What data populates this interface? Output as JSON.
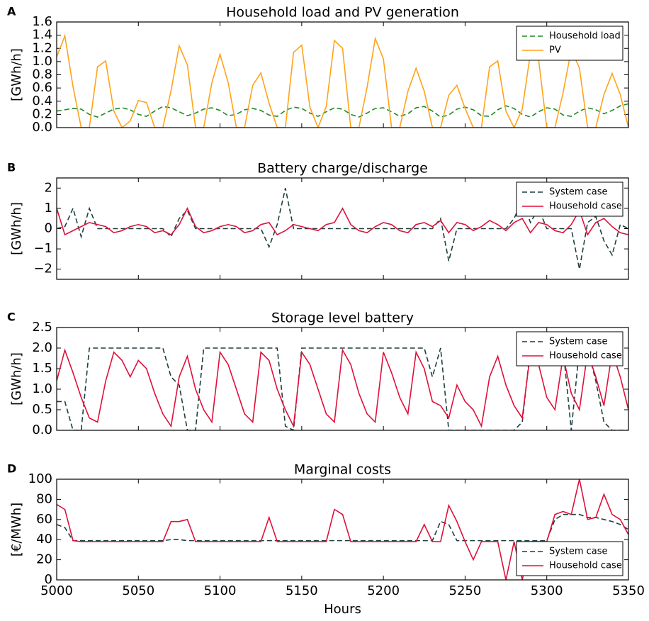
{
  "chart_data": [
    {
      "type": "line",
      "panel": "A",
      "title": "Household load and PV generation",
      "ylabel": "[GWh/h]",
      "x": [
        5000,
        5005,
        5010,
        5015,
        5020,
        5025,
        5030,
        5035,
        5040,
        5045,
        5050,
        5055,
        5060,
        5065,
        5070,
        5075,
        5080,
        5085,
        5090,
        5095,
        5100,
        5105,
        5110,
        5115,
        5120,
        5125,
        5130,
        5135,
        5140,
        5145,
        5150,
        5155,
        5160,
        5165,
        5170,
        5175,
        5180,
        5185,
        5190,
        5195,
        5200,
        5205,
        5210,
        5215,
        5220,
        5225,
        5230,
        5235,
        5240,
        5245,
        5250,
        5255,
        5260,
        5265,
        5270,
        5275,
        5280,
        5285,
        5290,
        5295,
        5300,
        5305,
        5310,
        5315,
        5320,
        5325,
        5330,
        5335,
        5340,
        5345,
        5350
      ],
      "xlim": [
        5000,
        5350
      ],
      "xticks": [
        5000,
        5050,
        5100,
        5150,
        5200,
        5250,
        5300,
        5350
      ],
      "ylim": [
        0,
        1.6
      ],
      "yticks": [
        {
          "value": 0,
          "label": "0.0"
        },
        {
          "value": 0.2,
          "label": "0.2"
        },
        {
          "value": 0.4,
          "label": "0.4"
        },
        {
          "value": 0.6,
          "label": "0.6"
        },
        {
          "value": 0.8,
          "label": "0.8"
        },
        {
          "value": 1.0,
          "label": "1.0"
        },
        {
          "value": 1.2,
          "label": "1.2"
        },
        {
          "value": 1.4,
          "label": "1.4"
        },
        {
          "value": 1.6,
          "label": "1.6"
        }
      ],
      "legend": "upper right",
      "series": [
        {
          "name": "Household load",
          "color": "#1e8c1e",
          "linestyle": "dashed",
          "values": [
            0.25,
            0.27,
            0.29,
            0.28,
            0.2,
            0.16,
            0.22,
            0.28,
            0.3,
            0.27,
            0.2,
            0.17,
            0.25,
            0.32,
            0.3,
            0.24,
            0.18,
            0.22,
            0.28,
            0.3,
            0.26,
            0.18,
            0.2,
            0.27,
            0.29,
            0.26,
            0.19,
            0.17,
            0.26,
            0.31,
            0.29,
            0.22,
            0.17,
            0.24,
            0.3,
            0.28,
            0.2,
            0.16,
            0.22,
            0.29,
            0.3,
            0.24,
            0.17,
            0.21,
            0.3,
            0.32,
            0.25,
            0.16,
            0.19,
            0.28,
            0.31,
            0.27,
            0.18,
            0.17,
            0.27,
            0.33,
            0.29,
            0.2,
            0.16,
            0.24,
            0.3,
            0.28,
            0.19,
            0.17,
            0.25,
            0.3,
            0.27,
            0.21,
            0.26,
            0.33,
            0.36
          ]
        },
        {
          "name": "PV",
          "color": "#ffa31a",
          "linestyle": "solid",
          "values": [
            1.07,
            1.39,
            0.62,
            0,
            0,
            0.92,
            1.01,
            0.25,
            0,
            0.1,
            0.41,
            0.38,
            0,
            0,
            0.56,
            1.24,
            0.95,
            0,
            0,
            0.68,
            1.11,
            0.68,
            0,
            0,
            0.64,
            0.83,
            0.37,
            0,
            0,
            1.14,
            1.25,
            0.31,
            0,
            0.32,
            1.32,
            1.2,
            0,
            0,
            0.61,
            1.35,
            1.04,
            0,
            0,
            0.55,
            0.9,
            0.55,
            0,
            0,
            0.49,
            0.64,
            0.29,
            0,
            0,
            0.92,
            1.01,
            0.25,
            0,
            0.28,
            1.13,
            1.03,
            0,
            0,
            0.53,
            1.18,
            0.9,
            0,
            0,
            0.5,
            0.82,
            0.5,
            0
          ]
        }
      ]
    },
    {
      "type": "line",
      "panel": "B",
      "title": "Battery charge/discharge",
      "ylabel": "[GWh/h]",
      "x": [
        5000,
        5005,
        5010,
        5015,
        5020,
        5025,
        5030,
        5035,
        5040,
        5045,
        5050,
        5055,
        5060,
        5065,
        5070,
        5075,
        5080,
        5085,
        5090,
        5095,
        5100,
        5105,
        5110,
        5115,
        5120,
        5125,
        5130,
        5135,
        5140,
        5145,
        5150,
        5155,
        5160,
        5165,
        5170,
        5175,
        5180,
        5185,
        5190,
        5195,
        5200,
        5205,
        5210,
        5215,
        5220,
        5225,
        5230,
        5235,
        5240,
        5245,
        5250,
        5255,
        5260,
        5265,
        5270,
        5275,
        5280,
        5285,
        5290,
        5295,
        5300,
        5305,
        5310,
        5315,
        5320,
        5325,
        5330,
        5335,
        5340,
        5345,
        5350
      ],
      "xlim": [
        5000,
        5350
      ],
      "xticks": [
        5000,
        5050,
        5100,
        5150,
        5200,
        5250,
        5300,
        5350
      ],
      "ylim": [
        -2.5,
        2.5
      ],
      "yticks": [
        {
          "value": -2,
          "label": "−2"
        },
        {
          "value": -1,
          "label": "−1"
        },
        0,
        1,
        2
      ],
      "legend": "upper right",
      "series": [
        {
          "name": "System case",
          "color": "#1f3f3f",
          "linestyle": "dashed",
          "values": [
            0,
            0.1,
            1.0,
            -0.4,
            1.0,
            0,
            0,
            0,
            0,
            0,
            0,
            0,
            0,
            0,
            -0.4,
            0.5,
            0.9,
            0,
            0,
            0,
            0,
            0,
            0,
            0,
            0,
            0,
            -0.9,
            0.2,
            2.0,
            0,
            0,
            0,
            0,
            0,
            0,
            0,
            0,
            0,
            0,
            0,
            0,
            0,
            0,
            0,
            0,
            0,
            0,
            0.5,
            -1.6,
            0,
            0,
            0,
            0,
            0,
            0,
            0,
            0.5,
            1.4,
            0.3,
            1.0,
            0,
            0,
            0,
            0,
            -2.0,
            0.3,
            0.6,
            -0.6,
            -1.3,
            0.2,
            0
          ]
        },
        {
          "name": "Household case",
          "color": "#e0103a",
          "linestyle": "solid",
          "values": [
            1.0,
            -0.3,
            -0.1,
            0.1,
            0.3,
            0.2,
            0.1,
            -0.2,
            -0.1,
            0.1,
            0.2,
            0.1,
            -0.2,
            -0.1,
            -0.3,
            0.2,
            1.0,
            0.1,
            -0.2,
            -0.1,
            0.1,
            0.2,
            0.1,
            -0.2,
            -0.1,
            0.2,
            0.3,
            -0.3,
            -0.1,
            0.2,
            0.1,
            0.0,
            -0.1,
            0.2,
            0.3,
            1.0,
            0.2,
            -0.1,
            -0.2,
            0.1,
            0.3,
            0.2,
            -0.1,
            -0.2,
            0.2,
            0.3,
            0.1,
            0.4,
            -0.2,
            0.3,
            0.2,
            -0.1,
            0.1,
            0.4,
            0.2,
            -0.1,
            0.3,
            0.5,
            -0.2,
            0.3,
            0.2,
            -0.1,
            -0.2,
            0.2,
            0.9,
            -0.3,
            0.3,
            0.5,
            0.1,
            -0.2,
            -0.3
          ]
        }
      ]
    },
    {
      "type": "line",
      "panel": "C",
      "title": "Storage level battery",
      "ylabel": "[GWh/h]",
      "x": [
        5000,
        5005,
        5010,
        5015,
        5020,
        5025,
        5030,
        5035,
        5040,
        5045,
        5050,
        5055,
        5060,
        5065,
        5070,
        5075,
        5080,
        5085,
        5090,
        5095,
        5100,
        5105,
        5110,
        5115,
        5120,
        5125,
        5130,
        5135,
        5140,
        5145,
        5150,
        5155,
        5160,
        5165,
        5170,
        5175,
        5180,
        5185,
        5190,
        5195,
        5200,
        5205,
        5210,
        5215,
        5220,
        5225,
        5230,
        5235,
        5240,
        5245,
        5250,
        5255,
        5260,
        5265,
        5270,
        5275,
        5280,
        5285,
        5290,
        5295,
        5300,
        5305,
        5310,
        5315,
        5320,
        5325,
        5330,
        5335,
        5340,
        5345,
        5350
      ],
      "xlim": [
        5000,
        5350
      ],
      "xticks": [
        5000,
        5050,
        5100,
        5150,
        5200,
        5250,
        5300,
        5350
      ],
      "ylim": [
        0,
        2.5
      ],
      "yticks": [
        {
          "value": 0,
          "label": "0.0"
        },
        {
          "value": 0.5,
          "label": "0.5"
        },
        {
          "value": 1.0,
          "label": "1.0"
        },
        {
          "value": 1.5,
          "label": "1.5"
        },
        {
          "value": 2.0,
          "label": "2.0"
        },
        {
          "value": 2.5,
          "label": "2.5"
        }
      ],
      "legend": "upper right",
      "series": [
        {
          "name": "System case",
          "color": "#1f3f3f",
          "linestyle": "dashed",
          "values": [
            0.7,
            0.7,
            0,
            0,
            2.0,
            2.0,
            2.0,
            2.0,
            2.0,
            2.0,
            2.0,
            2.0,
            2.0,
            2.0,
            1.3,
            1.1,
            0,
            0,
            2.0,
            2.0,
            2.0,
            2.0,
            2.0,
            2.0,
            2.0,
            2.0,
            2.0,
            2.0,
            0.1,
            0,
            2.0,
            2.0,
            2.0,
            2.0,
            2.0,
            2.0,
            2.0,
            2.0,
            2.0,
            2.0,
            2.0,
            2.0,
            2.0,
            2.0,
            2.0,
            2.0,
            1.3,
            2.0,
            0,
            0,
            0,
            0,
            0,
            0,
            0,
            0,
            0,
            0.2,
            2.0,
            2.0,
            2.0,
            2.0,
            2.0,
            0,
            2.0,
            2.0,
            1.2,
            0.2,
            0,
            0,
            0
          ]
        },
        {
          "name": "Household case",
          "color": "#e0103a",
          "linestyle": "solid",
          "values": [
            1.2,
            1.95,
            1.4,
            0.8,
            0.3,
            0.2,
            1.2,
            1.9,
            1.7,
            1.3,
            1.7,
            1.5,
            0.9,
            0.4,
            0.1,
            1.3,
            1.8,
            1.0,
            0.5,
            0.2,
            1.9,
            1.6,
            1.0,
            0.4,
            0.2,
            1.9,
            1.7,
            1.0,
            0.5,
            0.1,
            1.9,
            1.6,
            1.0,
            0.4,
            0.2,
            1.95,
            1.6,
            0.9,
            0.4,
            0.2,
            1.9,
            1.4,
            0.8,
            0.4,
            1.9,
            1.5,
            0.7,
            0.6,
            0.3,
            1.1,
            0.7,
            0.5,
            0.1,
            1.3,
            1.8,
            1.1,
            0.6,
            0.3,
            1.9,
            1.6,
            0.8,
            0.5,
            1.8,
            0.9,
            0.5,
            1.9,
            1.3,
            0.6,
            1.9,
            1.3,
            0.5
          ]
        }
      ]
    },
    {
      "type": "line",
      "panel": "D",
      "title": "Marginal costs",
      "ylabel": "[€/MWh]",
      "xlabel": "Hours",
      "x": [
        5000,
        5005,
        5010,
        5015,
        5020,
        5025,
        5030,
        5035,
        5040,
        5045,
        5050,
        5055,
        5060,
        5065,
        5070,
        5075,
        5080,
        5085,
        5090,
        5095,
        5100,
        5105,
        5110,
        5115,
        5120,
        5125,
        5130,
        5135,
        5140,
        5145,
        5150,
        5155,
        5160,
        5165,
        5170,
        5175,
        5180,
        5185,
        5190,
        5195,
        5200,
        5205,
        5210,
        5215,
        5220,
        5225,
        5230,
        5235,
        5240,
        5245,
        5250,
        5255,
        5260,
        5265,
        5270,
        5275,
        5280,
        5285,
        5290,
        5295,
        5300,
        5305,
        5310,
        5315,
        5320,
        5325,
        5330,
        5335,
        5340,
        5345,
        5350
      ],
      "xlim": [
        5000,
        5350
      ],
      "xticks": [
        5000,
        5050,
        5100,
        5150,
        5200,
        5250,
        5300,
        5350
      ],
      "ylim": [
        0,
        100
      ],
      "yticks": [
        0,
        20,
        40,
        60,
        80,
        100
      ],
      "legend": "lower right",
      "series": [
        {
          "name": "System case",
          "color": "#1f3f3f",
          "linestyle": "dashed",
          "values": [
            55,
            52,
            39,
            39,
            39,
            39,
            39,
            39,
            39,
            39,
            39,
            39,
            39,
            39,
            40,
            40,
            39,
            39,
            39,
            39,
            39,
            39,
            39,
            39,
            39,
            39,
            39,
            39,
            39,
            39,
            39,
            39,
            39,
            39,
            39,
            39,
            39,
            39,
            39,
            39,
            39,
            39,
            39,
            39,
            39,
            39,
            39,
            58,
            55,
            39,
            39,
            39,
            39,
            39,
            39,
            39,
            39,
            39,
            39,
            39,
            39,
            60,
            65,
            65,
            65,
            62,
            62,
            60,
            58,
            55,
            50
          ]
        },
        {
          "name": "Household case",
          "color": "#e0103a",
          "linestyle": "solid",
          "values": [
            75,
            70,
            39,
            38,
            38,
            38,
            38,
            38,
            38,
            38,
            38,
            38,
            38,
            38,
            58,
            58,
            60,
            38,
            38,
            38,
            38,
            38,
            38,
            38,
            38,
            38,
            62,
            38,
            38,
            38,
            38,
            38,
            38,
            38,
            70,
            65,
            38,
            38,
            38,
            38,
            38,
            38,
            38,
            38,
            38,
            55,
            38,
            38,
            74,
            58,
            38,
            20,
            38,
            38,
            38,
            0,
            38,
            0,
            38,
            38,
            38,
            65,
            68,
            65,
            100,
            60,
            62,
            85,
            65,
            60,
            45
          ]
        }
      ]
    }
  ]
}
